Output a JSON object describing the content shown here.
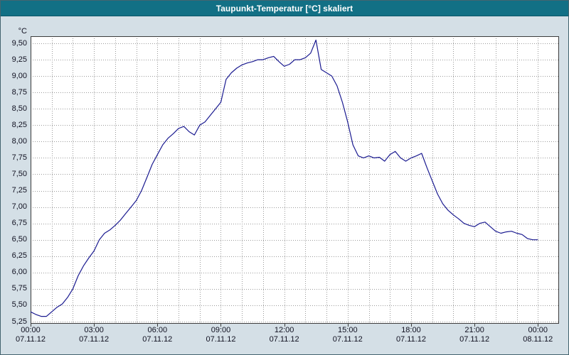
{
  "title": "Taupunkt-Temperatur [°C] skaliert",
  "window": {
    "background_color": "#d4dfe6",
    "titlebar_color": "#127085",
    "line_color": "#1a1a90",
    "grid_color": "#9a9a9a"
  },
  "chart_data": {
    "type": "line",
    "title": "Taupunkt-Temperatur [°C] skaliert",
    "xlabel": "",
    "ylabel": "°C",
    "grid": true,
    "legend": "none",
    "line_color": "#1a1a90",
    "ylim": [
      5.25,
      9.5
    ],
    "y_tick_step": 0.25,
    "y_tick_labels": [
      "9,50",
      "9,25",
      "9,00",
      "8,75",
      "8,50",
      "8,25",
      "8,00",
      "7,75",
      "7,50",
      "7,25",
      "7,00",
      "6,75",
      "6,50",
      "6,25",
      "6,00",
      "5,75",
      "5,50",
      "5,25"
    ],
    "x_range_hours": [
      0,
      25
    ],
    "x_ticks": [
      {
        "hour": 0,
        "time": "00:00",
        "date": "07.11.12"
      },
      {
        "hour": 3,
        "time": "03:00",
        "date": "07.11.12"
      },
      {
        "hour": 6,
        "time": "06:00",
        "date": "07.11.12"
      },
      {
        "hour": 9,
        "time": "09:00",
        "date": "07.11.12"
      },
      {
        "hour": 12,
        "time": "12:00",
        "date": "07.11.12"
      },
      {
        "hour": 15,
        "time": "15:00",
        "date": "07.11.12"
      },
      {
        "hour": 18,
        "time": "18:00",
        "date": "07.11.12"
      },
      {
        "hour": 21,
        "time": "21:00",
        "date": "07.11.12"
      },
      {
        "hour": 24,
        "time": "00:00",
        "date": "08.11.12"
      }
    ],
    "series": [
      {
        "name": "Taupunkt-Temperatur [°C]",
        "points": [
          [
            0,
            5.4
          ],
          [
            0.25,
            5.36
          ],
          [
            0.5,
            5.33
          ],
          [
            0.75,
            5.33
          ],
          [
            1,
            5.4
          ],
          [
            1.25,
            5.47
          ],
          [
            1.5,
            5.52
          ],
          [
            1.75,
            5.62
          ],
          [
            2,
            5.75
          ],
          [
            2.25,
            5.95
          ],
          [
            2.5,
            6.1
          ],
          [
            2.75,
            6.22
          ],
          [
            3,
            6.33
          ],
          [
            3.25,
            6.5
          ],
          [
            3.5,
            6.6
          ],
          [
            3.75,
            6.65
          ],
          [
            4,
            6.72
          ],
          [
            4.25,
            6.8
          ],
          [
            4.5,
            6.9
          ],
          [
            4.75,
            7.0
          ],
          [
            5,
            7.1
          ],
          [
            5.25,
            7.25
          ],
          [
            5.5,
            7.45
          ],
          [
            5.75,
            7.65
          ],
          [
            6,
            7.8
          ],
          [
            6.25,
            7.95
          ],
          [
            6.5,
            8.05
          ],
          [
            6.75,
            8.12
          ],
          [
            7,
            8.2
          ],
          [
            7.25,
            8.23
          ],
          [
            7.5,
            8.15
          ],
          [
            7.75,
            8.1
          ],
          [
            8,
            8.25
          ],
          [
            8.25,
            8.3
          ],
          [
            8.5,
            8.4
          ],
          [
            8.75,
            8.5
          ],
          [
            9,
            8.6
          ],
          [
            9.25,
            8.95
          ],
          [
            9.5,
            9.05
          ],
          [
            9.75,
            9.12
          ],
          [
            10,
            9.17
          ],
          [
            10.25,
            9.2
          ],
          [
            10.5,
            9.22
          ],
          [
            10.75,
            9.25
          ],
          [
            11,
            9.25
          ],
          [
            11.25,
            9.28
          ],
          [
            11.5,
            9.3
          ],
          [
            11.75,
            9.22
          ],
          [
            12,
            9.15
          ],
          [
            12.25,
            9.18
          ],
          [
            12.5,
            9.25
          ],
          [
            12.75,
            9.25
          ],
          [
            13,
            9.28
          ],
          [
            13.25,
            9.35
          ],
          [
            13.5,
            9.55
          ],
          [
            13.75,
            9.1
          ],
          [
            14,
            9.05
          ],
          [
            14.25,
            9.0
          ],
          [
            14.5,
            8.85
          ],
          [
            14.75,
            8.6
          ],
          [
            15,
            8.3
          ],
          [
            15.25,
            7.95
          ],
          [
            15.5,
            7.78
          ],
          [
            15.75,
            7.75
          ],
          [
            16,
            7.78
          ],
          [
            16.25,
            7.75
          ],
          [
            16.5,
            7.76
          ],
          [
            16.75,
            7.7
          ],
          [
            17,
            7.8
          ],
          [
            17.25,
            7.85
          ],
          [
            17.5,
            7.75
          ],
          [
            17.75,
            7.7
          ],
          [
            18,
            7.75
          ],
          [
            18.25,
            7.78
          ],
          [
            18.5,
            7.82
          ],
          [
            18.75,
            7.6
          ],
          [
            19,
            7.4
          ],
          [
            19.25,
            7.2
          ],
          [
            19.5,
            7.05
          ],
          [
            19.75,
            6.95
          ],
          [
            20,
            6.88
          ],
          [
            20.25,
            6.82
          ],
          [
            20.5,
            6.75
          ],
          [
            20.75,
            6.72
          ],
          [
            21,
            6.7
          ],
          [
            21.25,
            6.75
          ],
          [
            21.5,
            6.77
          ],
          [
            21.75,
            6.7
          ],
          [
            22,
            6.63
          ],
          [
            22.25,
            6.6
          ],
          [
            22.5,
            6.62
          ],
          [
            22.75,
            6.63
          ],
          [
            23,
            6.6
          ],
          [
            23.25,
            6.58
          ],
          [
            23.5,
            6.52
          ],
          [
            23.75,
            6.5
          ],
          [
            24,
            6.5
          ]
        ]
      }
    ]
  }
}
